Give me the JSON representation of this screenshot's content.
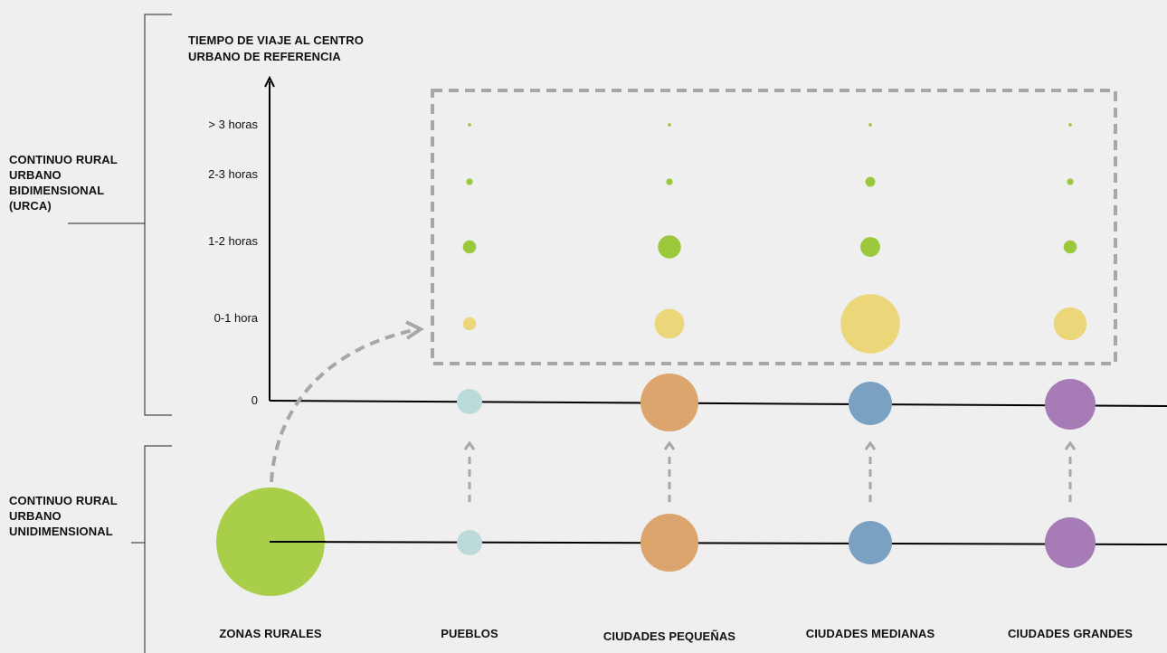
{
  "y_axis_title": [
    "TIEMPO DE VIAJE AL CENTRO",
    "URBANO DE REFERENCIA"
  ],
  "section_bidimensional": [
    "CONTINUO RURAL",
    "URBANO",
    "BIDIMENSIONAL",
    "(URCA)"
  ],
  "section_unidimensional": [
    "CONTINUO RURAL",
    "URBANO",
    "UNIDIMENSIONAL"
  ],
  "y_ticks": [
    "> 3 horas",
    "2-3 horas",
    "1-2 horas",
    "0-1 hora",
    "0"
  ],
  "categories": [
    "ZONAS RURALES",
    "PUEBLOS",
    "CIUDADES PEQUEÑAS",
    "CIUDADES MEDIANAS",
    "CIUDADES GRANDES"
  ],
  "colors": {
    "zonas_rurales": "#a9cf4a",
    "pueblos": "#bcdada",
    "ciudades_pequenas": "#dda56e",
    "ciudades_medianas": "#7ba1c2",
    "ciudades_grandes": "#a77cb6",
    "green_bubble": "#9cc93b",
    "yellow_bubble": "#ebd67a",
    "dashed": "#a7a7a7"
  },
  "chart_data": {
    "type": "scatter",
    "x_categories": [
      "PUEBLOS",
      "CIUDADES PEQUEÑAS",
      "CIUDADES MEDIANAS",
      "CIUDADES GRANDES"
    ],
    "y_categories": [
      "0-1 hora",
      "1-2 horas",
      "2-3 horas",
      "> 3 horas"
    ],
    "bubble_relative_size": {
      "> 3 horas": [
        1,
        1,
        1,
        1
      ],
      "2-3 horas": [
        2,
        2,
        3,
        2
      ],
      "1-2 horas": [
        4,
        7,
        6,
        4
      ],
      "0-1 hora": [
        4,
        9,
        18,
        10
      ]
    },
    "unidimensional_relative_size": {
      "ZONAS RURALES": 17,
      "PUEBLOS": 4,
      "CIUDADES PEQUEÑAS": 9,
      "CIUDADES MEDIANAS": 7,
      "CIUDADES GRANDES": 8
    }
  }
}
